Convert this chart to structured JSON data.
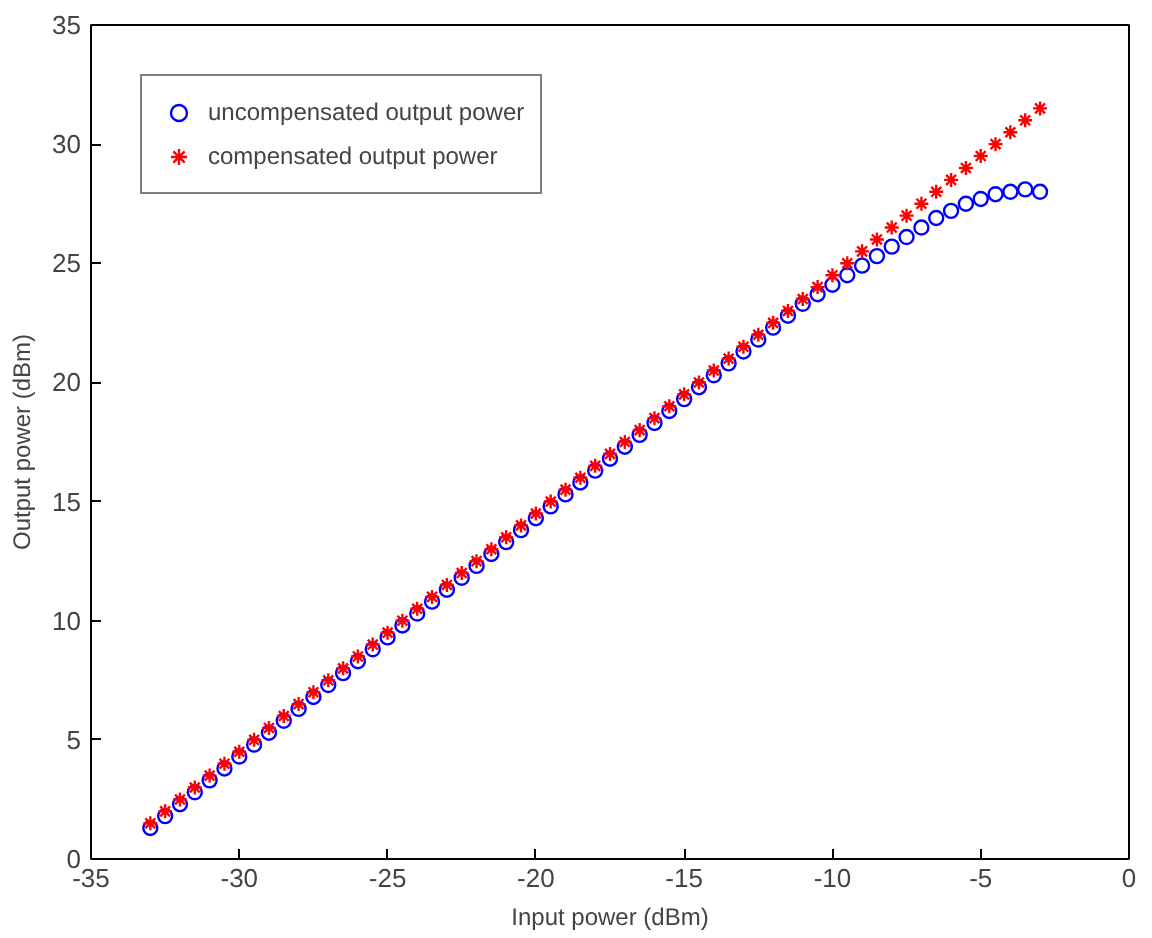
{
  "chart_data": {
    "type": "scatter",
    "xlabel": "Input power (dBm)",
    "ylabel": "Output power (dBm)",
    "x": [
      -33,
      -32.5,
      -32,
      -31.5,
      -31,
      -30.5,
      -30,
      -29.5,
      -29,
      -28.5,
      -28,
      -27.5,
      -27,
      -26.5,
      -26,
      -25.5,
      -25,
      -24.5,
      -24,
      -23.5,
      -23,
      -22.5,
      -22,
      -21.5,
      -21,
      -20.5,
      -20,
      -19.5,
      -19,
      -18.5,
      -18,
      -17.5,
      -17,
      -16.5,
      -16,
      -15.5,
      -15,
      -14.5,
      -14,
      -13.5,
      -13,
      -12.5,
      -12,
      -11.5,
      -11,
      -10.5,
      -10,
      -9.5,
      -9,
      -8.5,
      -8,
      -7.5,
      -7,
      -6.5,
      -6,
      -5.5,
      -5,
      -4.5,
      -4,
      -3.5,
      -3
    ],
    "series": [
      {
        "name": "uncompensated output power",
        "color": "#0000ff",
        "marker": "circle",
        "values": [
          1.3,
          1.8,
          2.3,
          2.8,
          3.3,
          3.8,
          4.3,
          4.8,
          5.3,
          5.8,
          6.3,
          6.8,
          7.3,
          7.8,
          8.3,
          8.8,
          9.3,
          9.8,
          10.3,
          10.8,
          11.3,
          11.8,
          12.3,
          12.8,
          13.3,
          13.8,
          14.3,
          14.8,
          15.3,
          15.8,
          16.3,
          16.8,
          17.3,
          17.8,
          18.3,
          18.8,
          19.3,
          19.8,
          20.3,
          20.8,
          21.3,
          21.8,
          22.3,
          22.8,
          23.3,
          23.7,
          24.1,
          24.5,
          24.9,
          25.3,
          25.7,
          26.1,
          26.5,
          26.9,
          27.2,
          27.5,
          27.7,
          27.9,
          28.0,
          28.1,
          28.0
        ]
      },
      {
        "name": "compensated output power",
        "color": "#ff0000",
        "marker": "cross",
        "values": [
          1.5,
          2,
          2.5,
          3,
          3.5,
          4,
          4.5,
          5,
          5.5,
          6,
          6.5,
          7,
          7.5,
          8,
          8.5,
          9,
          9.5,
          10,
          10.5,
          11,
          11.5,
          12,
          12.5,
          13,
          13.5,
          14,
          14.5,
          15,
          15.5,
          16,
          16.5,
          17,
          17.5,
          18,
          18.5,
          19,
          19.5,
          20,
          20.5,
          21,
          21.5,
          22,
          22.5,
          23,
          23.5,
          24,
          24.5,
          25,
          25.5,
          26,
          26.5,
          27,
          27.5,
          28,
          28.5,
          29,
          29.5,
          30,
          30.5,
          31,
          31.5
        ]
      }
    ],
    "xlim": [
      -35,
      0
    ],
    "xticks": [
      -35,
      -30,
      -25,
      -20,
      -15,
      -10,
      -5,
      0
    ],
    "ylim": [
      0,
      35
    ],
    "yticks": [
      0,
      5,
      10,
      15,
      20,
      25,
      30,
      35
    ],
    "grid": false,
    "legend": "top left"
  }
}
